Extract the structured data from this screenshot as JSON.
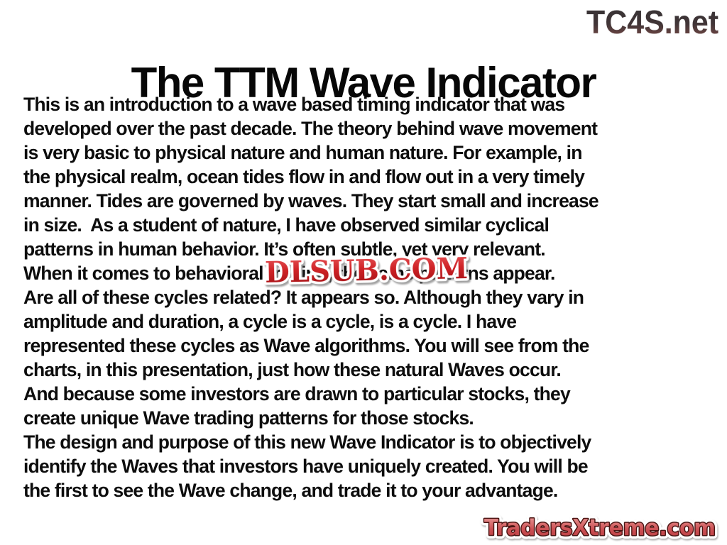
{
  "slide": {
    "title": "The TTM Wave Indicator",
    "body_lines": [
      "This is an introduction to a wave based timing indicator that was",
      "developed over the past decade. The theory behind wave movement",
      "is very basic to physical nature and human nature. For example, in",
      "the physical realm, ocean tides flow in and flow out in a very timely",
      "manner. Tides are governed by waves. They start small and increase",
      "in size.  As a student of nature, I have observed similar cyclical",
      "patterns in human behavior. It’s often subtle, yet very relevant.",
      "When it comes to behavioral trading, the same patterns appear.",
      "Are all of these cycles related? It appears so. Although they vary in",
      "amplitude and duration, a cycle is a cycle, is a cycle. I have",
      "represented these cycles as Wave algorithms. You will see from the",
      "charts, in this presentation, just how these natural Waves occur.",
      "And because some investors are drawn to particular stocks, they",
      "create unique Wave trading patterns for those stocks.",
      "The design and purpose of this new Wave Indicator is to objectively",
      "identify the Waves that investors have uniquely created. You will be",
      "the first to see the Wave change, and trade it to your advantage."
    ]
  },
  "watermarks": {
    "tc4s_label": "TC4S.net",
    "dlsub_label": "DLSUB.COM",
    "tradersxtreme_label": "TradersXtreme.com"
  },
  "colors": {
    "background": "#ffffff",
    "body_text": "#0d0d0d",
    "dlsub_red_top": "#e8595c",
    "dlsub_red_bottom": "#9d0e12",
    "tc4s_top": "#343234",
    "tc4s_bottom": "#7d4b46",
    "tx_fill_top": "#eb9e9b",
    "tx_fill_bottom": "#b53a3e",
    "tx_outline": "#4a1412"
  }
}
